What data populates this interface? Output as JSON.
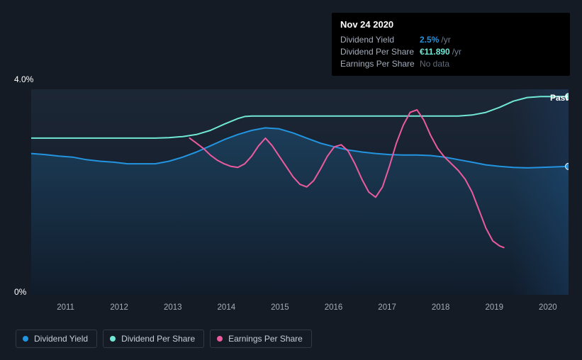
{
  "chart": {
    "type": "line",
    "background_color": "#151b24",
    "plot_background_gradient": [
      "#1a2432",
      "#0f1825"
    ],
    "grid_color": "#1f2937",
    "y_axis": {
      "min": 0,
      "max": 4.0,
      "ticks": [
        {
          "value": 0,
          "label": "0%"
        },
        {
          "value": 4.0,
          "label": "4.0%"
        }
      ]
    },
    "x_axis": {
      "years": [
        "2011",
        "2012",
        "2013",
        "2014",
        "2015",
        "2016",
        "2017",
        "2018",
        "2019",
        "2020"
      ],
      "tick_color": "#a4adbb",
      "tick_fontsize": 11.5
    },
    "past_label": "Past",
    "series": [
      {
        "id": "dividend_yield",
        "label": "Dividend Yield",
        "color": "#2394df",
        "line_width": 2,
        "area_fill": true,
        "area_opacity": 0.12,
        "marker_end": true,
        "points": [
          [
            0.0,
            2.75
          ],
          [
            0.1,
            2.73
          ],
          [
            0.2,
            2.7
          ],
          [
            0.3,
            2.68
          ],
          [
            0.4,
            2.63
          ],
          [
            0.5,
            2.6
          ],
          [
            0.6,
            2.58
          ],
          [
            0.7,
            2.55
          ],
          [
            0.8,
            2.55
          ],
          [
            0.9,
            2.55
          ],
          [
            1.0,
            2.6
          ],
          [
            1.1,
            2.68
          ],
          [
            1.2,
            2.78
          ],
          [
            1.3,
            2.9
          ],
          [
            1.4,
            3.02
          ],
          [
            1.5,
            3.12
          ],
          [
            1.6,
            3.2
          ],
          [
            1.7,
            3.25
          ],
          [
            1.8,
            3.23
          ],
          [
            1.9,
            3.15
          ],
          [
            2.0,
            3.05
          ],
          [
            2.1,
            2.95
          ],
          [
            2.2,
            2.88
          ],
          [
            2.3,
            2.82
          ],
          [
            2.4,
            2.78
          ],
          [
            2.5,
            2.75
          ],
          [
            2.6,
            2.73
          ],
          [
            2.7,
            2.72
          ],
          [
            2.8,
            2.72
          ],
          [
            2.9,
            2.71
          ],
          [
            3.0,
            2.68
          ],
          [
            3.1,
            2.63
          ],
          [
            3.2,
            2.58
          ],
          [
            3.3,
            2.53
          ],
          [
            3.4,
            2.5
          ],
          [
            3.5,
            2.48
          ],
          [
            3.6,
            2.47
          ],
          [
            3.7,
            2.48
          ],
          [
            3.8,
            2.49
          ],
          [
            3.9,
            2.5
          ]
        ]
      },
      {
        "id": "dividend_per_share",
        "label": "Dividend Per Share",
        "color": "#71e7d6",
        "line_width": 2,
        "area_fill": false,
        "marker_end": true,
        "points": [
          [
            0.0,
            3.05
          ],
          [
            0.3,
            3.05
          ],
          [
            0.6,
            3.05
          ],
          [
            0.9,
            3.05
          ],
          [
            1.0,
            3.06
          ],
          [
            1.1,
            3.08
          ],
          [
            1.2,
            3.12
          ],
          [
            1.3,
            3.2
          ],
          [
            1.4,
            3.32
          ],
          [
            1.5,
            3.43
          ],
          [
            1.55,
            3.47
          ],
          [
            1.6,
            3.48
          ],
          [
            1.8,
            3.48
          ],
          [
            2.0,
            3.48
          ],
          [
            2.3,
            3.48
          ],
          [
            2.6,
            3.48
          ],
          [
            2.9,
            3.48
          ],
          [
            3.0,
            3.48
          ],
          [
            3.1,
            3.48
          ],
          [
            3.2,
            3.5
          ],
          [
            3.3,
            3.55
          ],
          [
            3.4,
            3.65
          ],
          [
            3.5,
            3.77
          ],
          [
            3.6,
            3.84
          ],
          [
            3.7,
            3.86
          ],
          [
            3.8,
            3.86
          ],
          [
            3.9,
            3.86
          ]
        ]
      },
      {
        "id": "earnings_per_share",
        "label": "Earnings Per Share",
        "color": "#eb5b9d",
        "line_width": 2,
        "area_fill": false,
        "marker_end": false,
        "points": [
          [
            1.15,
            3.05
          ],
          [
            1.2,
            2.95
          ],
          [
            1.25,
            2.85
          ],
          [
            1.3,
            2.72
          ],
          [
            1.35,
            2.62
          ],
          [
            1.4,
            2.55
          ],
          [
            1.45,
            2.5
          ],
          [
            1.5,
            2.48
          ],
          [
            1.55,
            2.55
          ],
          [
            1.6,
            2.7
          ],
          [
            1.65,
            2.9
          ],
          [
            1.7,
            3.05
          ],
          [
            1.75,
            2.9
          ],
          [
            1.8,
            2.7
          ],
          [
            1.85,
            2.5
          ],
          [
            1.9,
            2.3
          ],
          [
            1.95,
            2.15
          ],
          [
            2.0,
            2.1
          ],
          [
            2.05,
            2.22
          ],
          [
            2.1,
            2.45
          ],
          [
            2.15,
            2.7
          ],
          [
            2.2,
            2.88
          ],
          [
            2.25,
            2.92
          ],
          [
            2.3,
            2.8
          ],
          [
            2.35,
            2.55
          ],
          [
            2.4,
            2.25
          ],
          [
            2.45,
            2.0
          ],
          [
            2.5,
            1.9
          ],
          [
            2.55,
            2.1
          ],
          [
            2.6,
            2.5
          ],
          [
            2.65,
            2.95
          ],
          [
            2.7,
            3.3
          ],
          [
            2.75,
            3.55
          ],
          [
            2.8,
            3.6
          ],
          [
            2.85,
            3.4
          ],
          [
            2.9,
            3.1
          ],
          [
            2.95,
            2.85
          ],
          [
            3.0,
            2.68
          ],
          [
            3.05,
            2.55
          ],
          [
            3.1,
            2.42
          ],
          [
            3.15,
            2.25
          ],
          [
            3.2,
            2.0
          ],
          [
            3.25,
            1.65
          ],
          [
            3.3,
            1.3
          ],
          [
            3.35,
            1.05
          ],
          [
            3.4,
            0.95
          ],
          [
            3.43,
            0.92
          ]
        ]
      }
    ]
  },
  "tooltip": {
    "title": "Nov 24 2020",
    "rows": [
      {
        "label": "Dividend Yield",
        "value": "2.5%",
        "unit": "/yr",
        "value_color": "#2394df"
      },
      {
        "label": "Dividend Per Share",
        "value": "€11.890",
        "unit": "/yr",
        "value_color": "#71e7d6"
      },
      {
        "label": "Earnings Per Share",
        "nodata": "No data"
      }
    ]
  },
  "legend": {
    "items": [
      {
        "id": "dividend_yield",
        "label": "Dividend Yield",
        "color": "#2394df"
      },
      {
        "id": "dividend_per_share",
        "label": "Dividend Per Share",
        "color": "#71e7d6"
      },
      {
        "id": "earnings_per_share",
        "label": "Earnings Per Share",
        "color": "#eb5b9d"
      }
    ]
  }
}
